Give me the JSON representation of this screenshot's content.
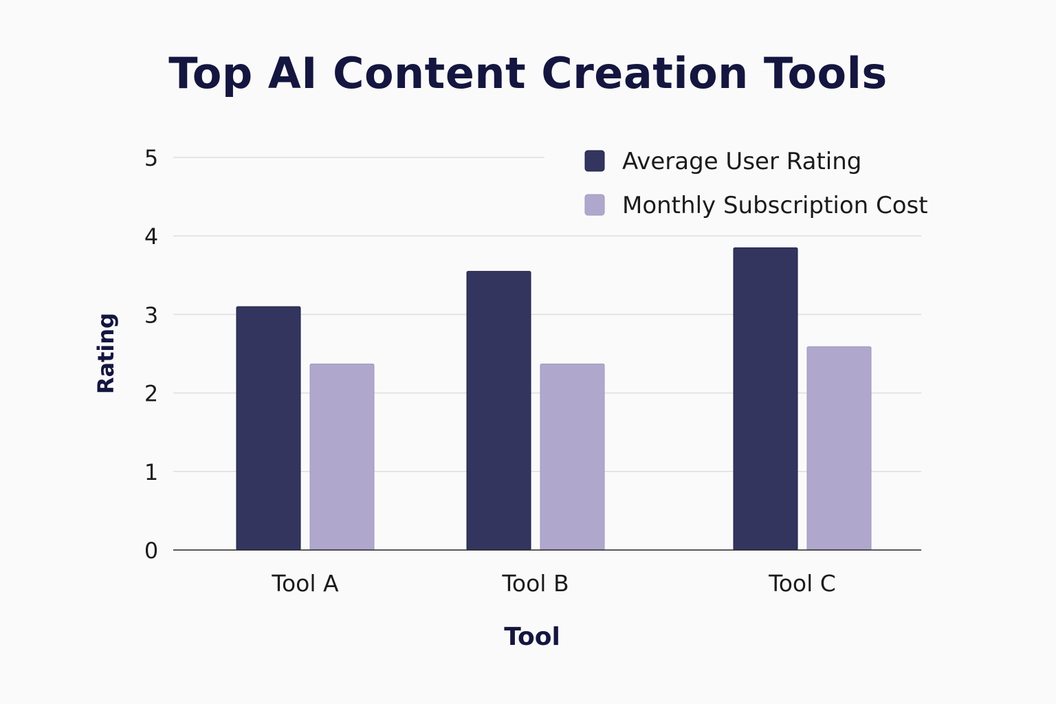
{
  "chart_data": {
    "type": "bar",
    "title": "Top AI Content Creation Tools",
    "xlabel": "Tool",
    "ylabel": "Rating",
    "categories": [
      "Tool A",
      "Tool B",
      "Tool C"
    ],
    "series": [
      {
        "name": "Average User Rating",
        "values": [
          3.1,
          3.55,
          3.85
        ],
        "color": "#33355f"
      },
      {
        "name": "Monthly Subscription Cost",
        "values": [
          2.37,
          2.37,
          2.59
        ],
        "color": "#b0a8cc"
      }
    ],
    "ylim": [
      0,
      5
    ],
    "yticks": [
      "0",
      "1",
      "2",
      "3",
      "4",
      "5"
    ],
    "grid": true,
    "legend_position": "top-right"
  }
}
